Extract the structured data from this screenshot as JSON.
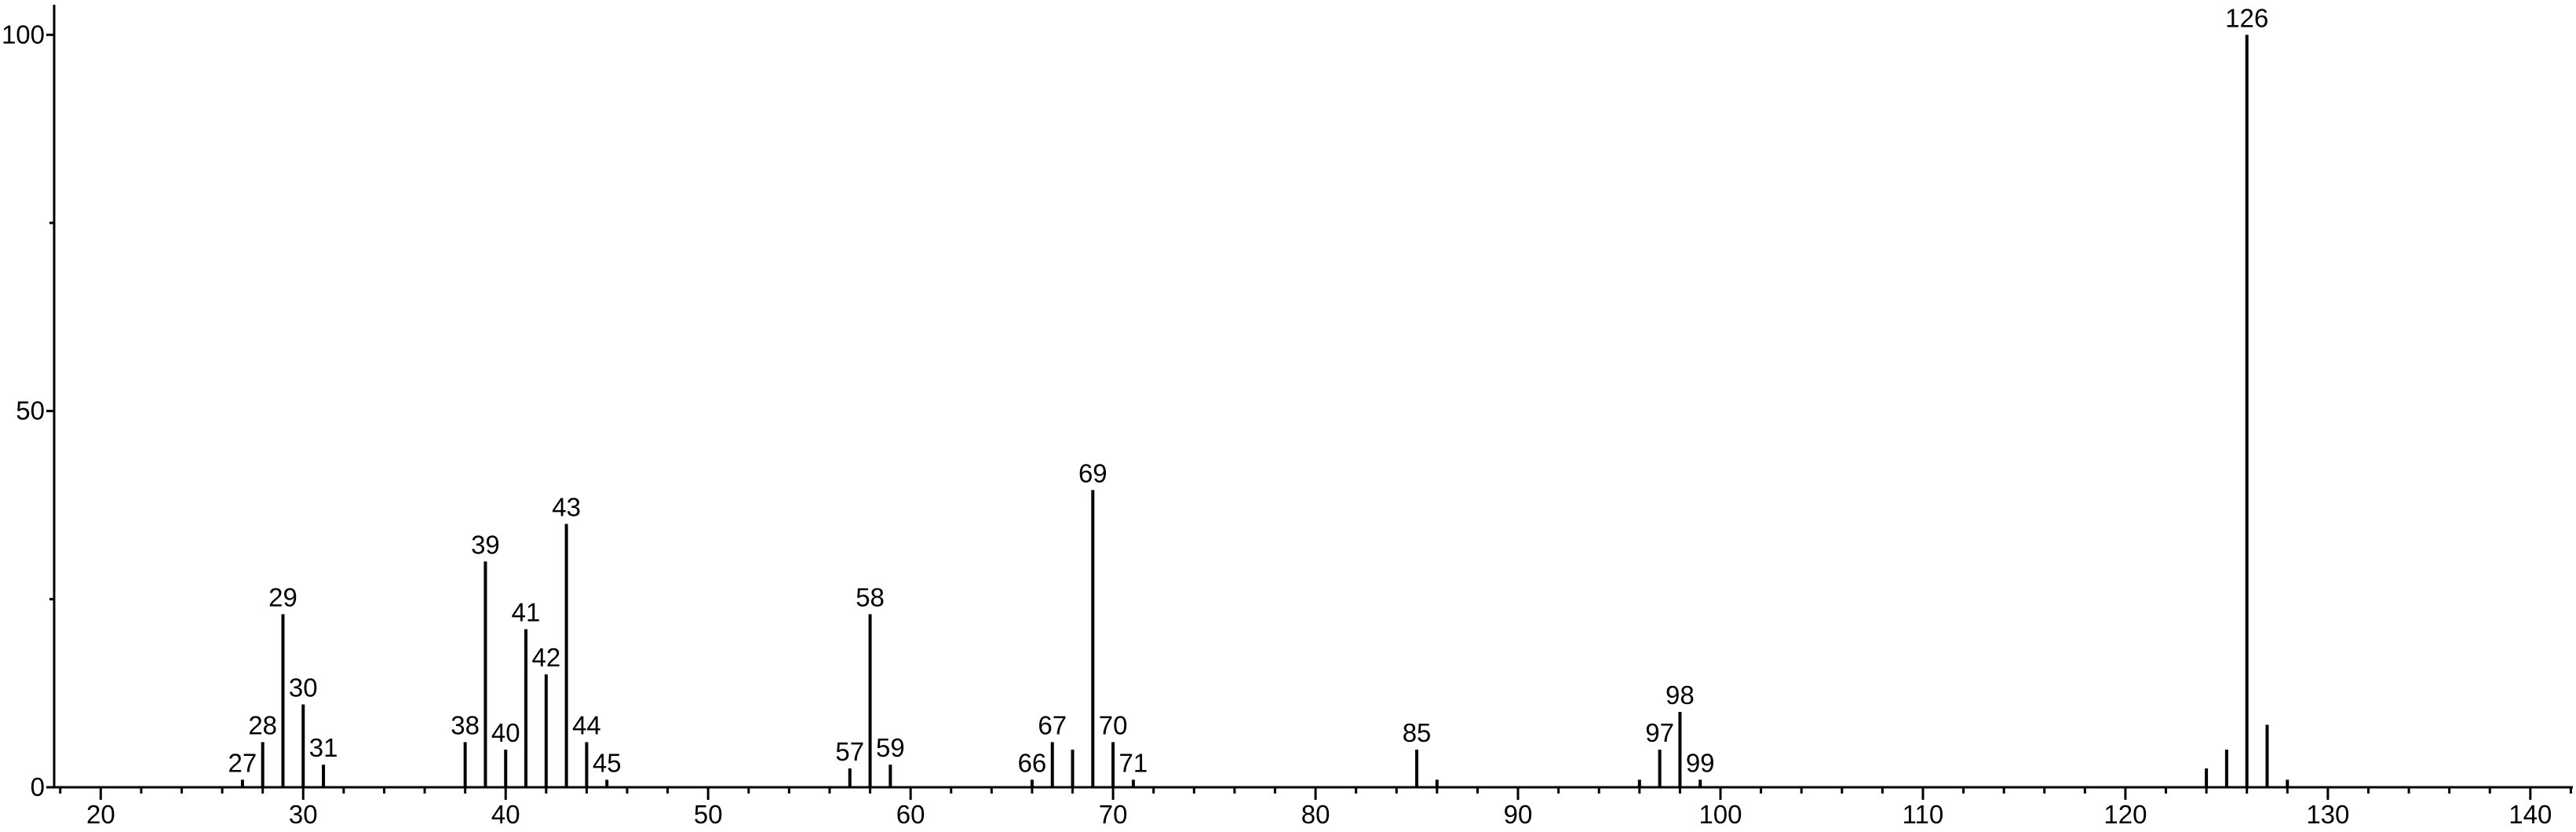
{
  "chart_data": {
    "type": "stem",
    "x": [
      27,
      28,
      29,
      30,
      31,
      38,
      39,
      40,
      41,
      42,
      43,
      44,
      45,
      57,
      58,
      59,
      66,
      67,
      68,
      69,
      70,
      71,
      85,
      86,
      96,
      97,
      98,
      99,
      124,
      125,
      126,
      127,
      128
    ],
    "values": [
      1,
      6,
      23,
      11,
      3,
      6,
      30,
      5,
      21,
      15,
      35,
      6,
      1,
      2.5,
      23,
      3,
      1,
      6,
      5,
      39.5,
      6,
      1,
      5,
      1,
      1,
      5,
      10,
      1,
      2.5,
      5,
      100,
      8.3,
      1
    ],
    "labels": [
      "27",
      "28",
      "29",
      "30",
      "31",
      "38",
      "39",
      "40",
      "41",
      "42",
      "43",
      "44",
      "45",
      "57",
      "58",
      "59",
      "66",
      "67",
      null,
      "69",
      "70",
      "71",
      "85",
      null,
      null,
      "97",
      "98",
      "99",
      null,
      null,
      "126",
      null,
      null
    ],
    "color": "#000000",
    "xlim": [
      17.7,
      142.1
    ],
    "xticks": [
      20,
      30,
      40,
      50,
      60,
      70,
      80,
      90,
      100,
      110,
      120,
      130,
      140
    ],
    "x_minor_ticks": [
      18,
      22,
      24,
      26,
      28,
      32,
      34,
      36,
      38,
      42,
      44,
      46,
      48,
      52,
      54,
      56,
      58,
      62,
      64,
      66,
      68,
      72,
      74,
      76,
      78,
      82,
      84,
      86,
      88,
      92,
      94,
      96,
      98,
      102,
      104,
      106,
      108,
      112,
      114,
      116,
      118,
      122,
      124,
      126,
      128,
      132,
      134,
      136,
      138,
      142
    ],
    "ylim": [
      0,
      104
    ],
    "yticks": [
      0,
      50,
      100
    ],
    "y_minor_ticks": [
      25,
      75
    ],
    "grid": false
  }
}
